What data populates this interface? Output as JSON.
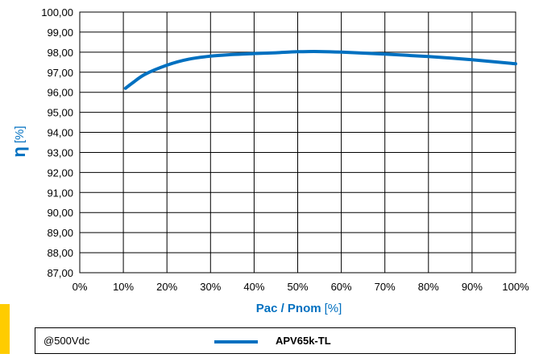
{
  "chart_data": {
    "type": "line",
    "title": "",
    "ylabel_symbol": "η",
    "ylabel_unit": "[%]",
    "xlabel_main": "Pac / Pnom",
    "xlabel_unit": "[%]",
    "xlim": [
      0,
      100
    ],
    "ylim": [
      87,
      100
    ],
    "xticks": [
      "0%",
      "10%",
      "20%",
      "30%",
      "40%",
      "50%",
      "60%",
      "70%",
      "80%",
      "90%",
      "100%"
    ],
    "yticks": [
      "100,00",
      "99,00",
      "98,00",
      "97,00",
      "96,00",
      "95,00",
      "94,00",
      "93,00",
      "92,00",
      "91,00",
      "90,00",
      "89,00",
      "88,00",
      "87,00"
    ],
    "grid": true,
    "legend_placement": "bottom",
    "condition": "@500Vdc",
    "series": [
      {
        "name": "APV65k-TL",
        "color": "#0070c0",
        "x": [
          10.5,
          12,
          15,
          20,
          25,
          30,
          35,
          40,
          45,
          50,
          55,
          60,
          70,
          80,
          90,
          100
        ],
        "y": [
          96.2,
          96.45,
          96.9,
          97.35,
          97.65,
          97.8,
          97.88,
          97.93,
          97.97,
          98.02,
          98.03,
          98.0,
          97.9,
          97.78,
          97.62,
          97.42
        ]
      }
    ]
  },
  "colors": {
    "axis_label": "#0070c0",
    "accent_bar": "#ffcc00",
    "grid": "#000000"
  }
}
